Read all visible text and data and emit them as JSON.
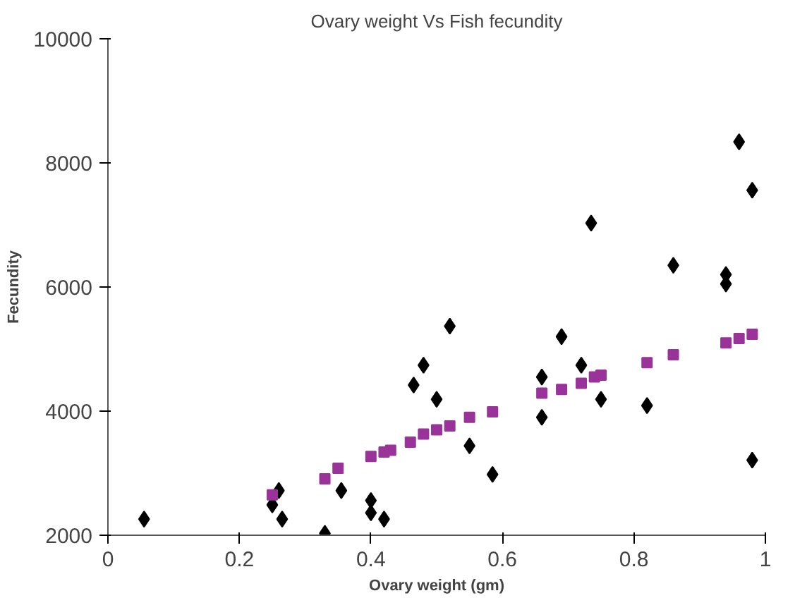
{
  "chart_data": {
    "type": "scatter",
    "title": "Ovary weight Vs Fish fecundity",
    "xlabel": "Ovary weight (gm)",
    "ylabel": "Fecundity",
    "xlim": [
      0,
      1
    ],
    "xticks": [
      0,
      0.2,
      0.4,
      0.6,
      0.8,
      1
    ],
    "ylim": [
      2000,
      10000
    ],
    "yticks": [
      2000,
      4000,
      6000,
      8000,
      10000
    ],
    "grid": false,
    "series": [
      {
        "color": "#000000",
        "marker": "diamond",
        "x": [
          0.055,
          0.25,
          0.26,
          0.265,
          0.33,
          0.355,
          0.4,
          0.4,
          0.42,
          0.465,
          0.48,
          0.5,
          0.52,
          0.55,
          0.585,
          0.66,
          0.66,
          0.69,
          0.72,
          0.735,
          0.75,
          0.82,
          0.86,
          0.94,
          0.94,
          0.96,
          0.98,
          0.98
        ],
        "values": [
          2260,
          2490,
          2720,
          2260,
          2030,
          2720,
          2560,
          2360,
          2260,
          4420,
          4740,
          4190,
          5370,
          3440,
          2980,
          4550,
          3900,
          5200,
          4740,
          7030,
          4190,
          4090,
          6350,
          6050,
          6200,
          8340,
          7560,
          3210
        ]
      },
      {
        "color": "#993399",
        "marker": "square",
        "x": [
          0.25,
          0.33,
          0.35,
          0.4,
          0.42,
          0.43,
          0.46,
          0.48,
          0.5,
          0.52,
          0.55,
          0.585,
          0.66,
          0.69,
          0.72,
          0.74,
          0.75,
          0.82,
          0.86,
          0.94,
          0.96,
          0.98
        ],
        "values": [
          2650,
          2910,
          3080,
          3270,
          3340,
          3370,
          3500,
          3630,
          3700,
          3760,
          3900,
          3990,
          4290,
          4350,
          4450,
          4550,
          4580,
          4780,
          4910,
          5100,
          5170,
          5240
        ]
      }
    ]
  }
}
